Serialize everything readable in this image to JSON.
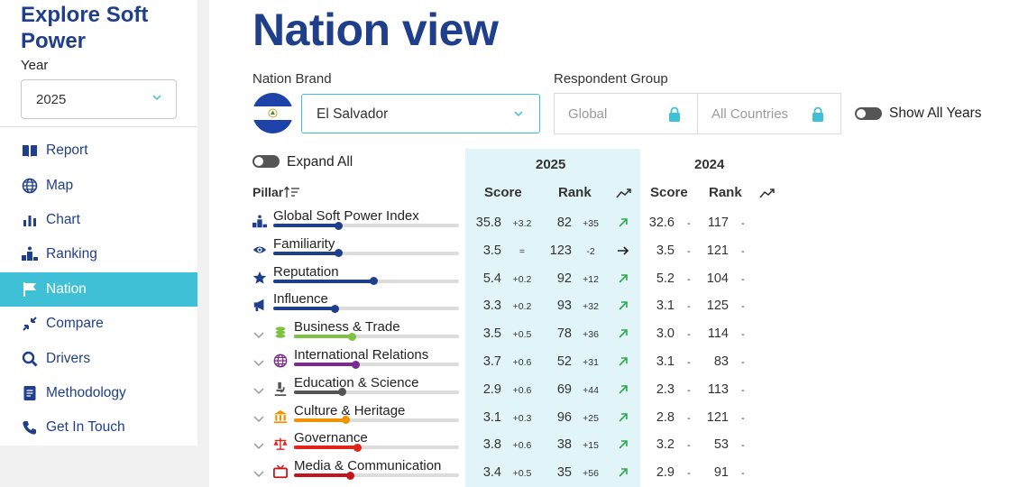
{
  "sidebar": {
    "title": "Explore Soft Power",
    "year_label": "Year",
    "year_value": "2025",
    "nav": [
      {
        "label": "Report",
        "icon": "book-icon",
        "active": false
      },
      {
        "label": "Map",
        "icon": "globe-icon",
        "active": false
      },
      {
        "label": "Chart",
        "icon": "bar-chart-icon",
        "active": false
      },
      {
        "label": "Ranking",
        "icon": "podium-icon",
        "active": false
      },
      {
        "label": "Nation",
        "icon": "flag-icon",
        "active": true
      },
      {
        "label": "Compare",
        "icon": "compare-arrows-icon",
        "active": false
      },
      {
        "label": "Drivers",
        "icon": "magnifier-icon",
        "active": false
      },
      {
        "label": "Methodology",
        "icon": "document-icon",
        "active": false
      },
      {
        "label": "Get In Touch",
        "icon": "phone-icon",
        "active": false
      }
    ]
  },
  "main": {
    "title": "Nation view",
    "nation_brand_label": "Nation Brand",
    "nation_value": "El Salvador",
    "respondent_label": "Respondent Group",
    "respondent_global": "Global",
    "respondent_countries": "All Countries",
    "show_all_years": "Show All Years",
    "expand_all": "Expand All",
    "pillar_label": "Pillar",
    "year_current": "2025",
    "year_previous": "2024",
    "score_label": "Score",
    "rank_label": "Rank",
    "rows": [
      {
        "name": "Global Soft Power Index",
        "icon": "podium-icon",
        "expandable": false,
        "color": "#1f3f8a",
        "progress": 0.35,
        "score": "35.8",
        "score_change": "+3.2",
        "rank": "82",
        "rank_change": "+35",
        "trend": "up",
        "prev_score": "32.6",
        "prev_rank": "117"
      },
      {
        "name": "Familiarity",
        "icon": "eye-icon",
        "expandable": false,
        "color": "#1f3f8a",
        "progress": 0.35,
        "score": "3.5",
        "score_change": "=",
        "rank": "123",
        "rank_change": "-2",
        "trend": "flat",
        "prev_score": "3.5",
        "prev_rank": "121"
      },
      {
        "name": "Reputation",
        "icon": "star-icon",
        "expandable": false,
        "color": "#1f3f8a",
        "progress": 0.54,
        "score": "5.4",
        "score_change": "+0.2",
        "rank": "92",
        "rank_change": "+12",
        "trend": "up",
        "prev_score": "5.2",
        "prev_rank": "104"
      },
      {
        "name": "Influence",
        "icon": "megaphone-icon",
        "expandable": false,
        "color": "#1f3f8a",
        "progress": 0.33,
        "score": "3.3",
        "score_change": "+0.2",
        "rank": "93",
        "rank_change": "+32",
        "trend": "up",
        "prev_score": "3.1",
        "prev_rank": "125"
      },
      {
        "name": "Business & Trade",
        "icon": "coins-icon",
        "expandable": true,
        "color": "#7dc242",
        "progress": 0.35,
        "score": "3.5",
        "score_change": "+0.5",
        "rank": "78",
        "rank_change": "+36",
        "trend": "up",
        "prev_score": "3.0",
        "prev_rank": "114"
      },
      {
        "name": "International Relations",
        "icon": "globe-icon",
        "expandable": true,
        "color": "#7b2a8e",
        "progress": 0.37,
        "score": "3.7",
        "score_change": "+0.6",
        "rank": "52",
        "rank_change": "+31",
        "trend": "up",
        "prev_score": "3.1",
        "prev_rank": "83"
      },
      {
        "name": "Education & Science",
        "icon": "microscope-icon",
        "expandable": true,
        "color": "#555555",
        "progress": 0.29,
        "score": "2.9",
        "score_change": "+0.6",
        "rank": "69",
        "rank_change": "+44",
        "trend": "up",
        "prev_score": "2.3",
        "prev_rank": "113"
      },
      {
        "name": "Culture & Heritage",
        "icon": "museum-icon",
        "expandable": true,
        "color": "#f39200",
        "progress": 0.31,
        "score": "3.1",
        "score_change": "+0.3",
        "rank": "96",
        "rank_change": "+25",
        "trend": "up",
        "prev_score": "2.8",
        "prev_rank": "121"
      },
      {
        "name": "Governance",
        "icon": "scales-icon",
        "expandable": true,
        "color": "#e2231a",
        "progress": 0.38,
        "score": "3.8",
        "score_change": "+0.6",
        "rank": "38",
        "rank_change": "+15",
        "trend": "up",
        "prev_score": "3.2",
        "prev_rank": "53"
      },
      {
        "name": "Media & Communication",
        "icon": "tv-icon",
        "expandable": true,
        "color": "#c0161c",
        "progress": 0.34,
        "score": "3.4",
        "score_change": "+0.5",
        "rank": "35",
        "rank_change": "+56",
        "trend": "up",
        "prev_score": "2.9",
        "prev_rank": "91"
      }
    ]
  },
  "colors": {
    "brand": "#1f3f8a",
    "accent": "#3fc0d6",
    "trend_up": "#2eaa4e",
    "highlight_col": "#e1f4f7"
  }
}
